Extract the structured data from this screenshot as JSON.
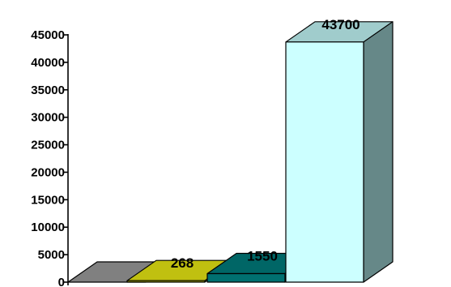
{
  "chart_data": {
    "type": "bar",
    "style": "3d",
    "categories": [
      "",
      "",
      "",
      ""
    ],
    "values": [
      0,
      268,
      1550,
      43700
    ],
    "data_labels": [
      "",
      "268",
      "1550",
      "43700"
    ],
    "ylim": [
      0,
      45000
    ],
    "yticks": [
      0,
      5000,
      10000,
      15000,
      20000,
      25000,
      30000,
      35000,
      40000,
      45000
    ],
    "ytick_labels": [
      "0",
      "5000",
      "10000",
      "15000",
      "20000",
      "25000",
      "30000",
      "35000",
      "40000",
      "45000"
    ],
    "grid": false,
    "legend": "none",
    "bar_colors": [
      {
        "front": "#909090",
        "top": "#808080",
        "side": "#6a6a6a"
      },
      {
        "front": "#c8c800",
        "top": "#c0c010",
        "side": "#9a9a00"
      },
      {
        "front": "#007070",
        "top": "#006666",
        "side": "#004c4c"
      },
      {
        "front": "#ccffff",
        "top": "#a0cccc",
        "side": "#668888"
      }
    ]
  }
}
